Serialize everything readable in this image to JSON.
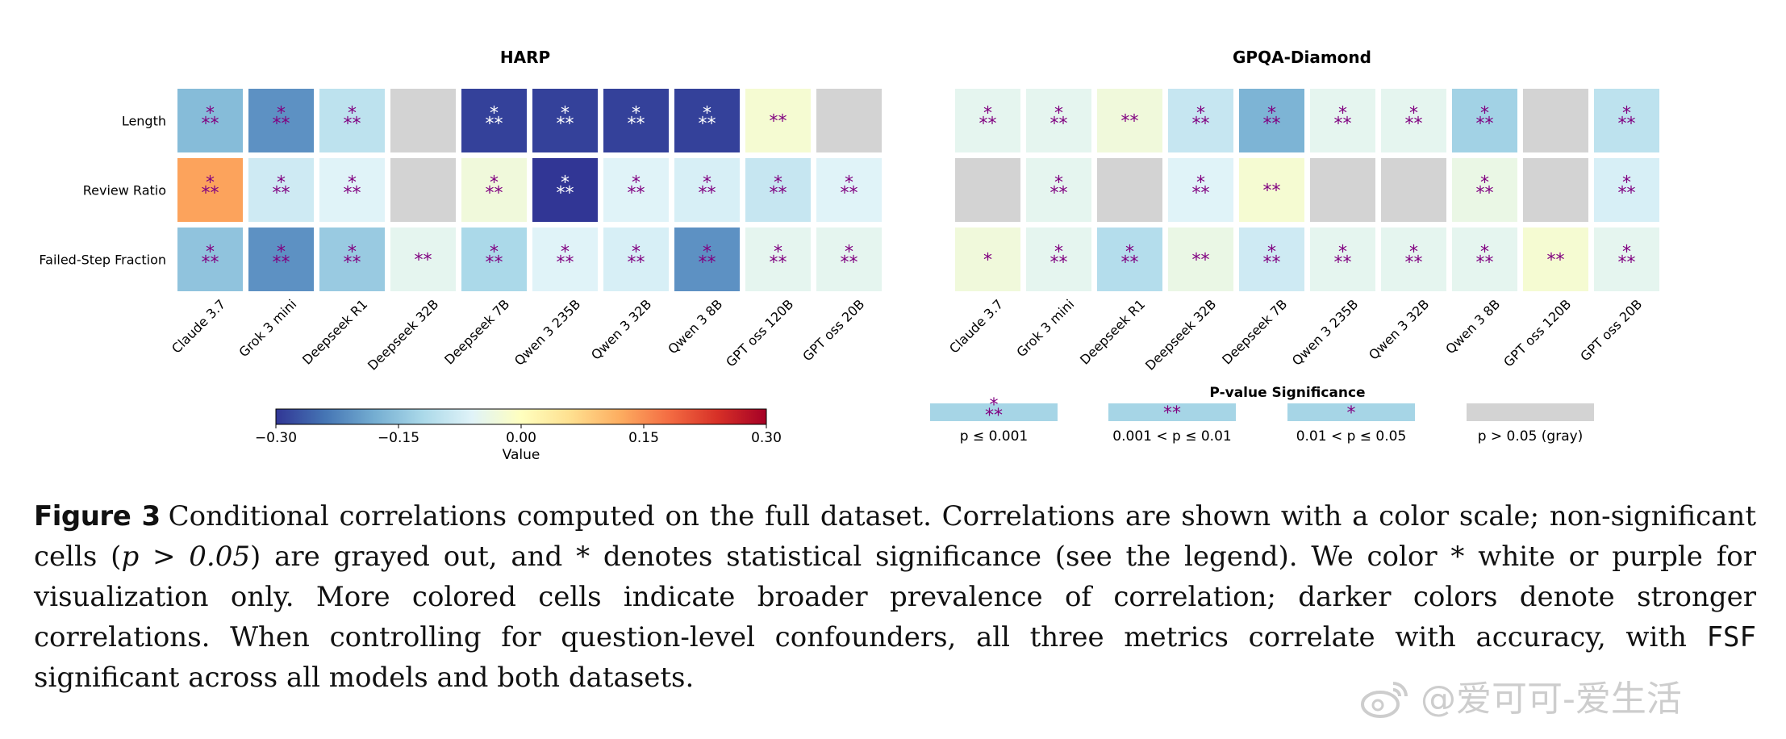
{
  "chart_data": [
    {
      "type": "heatmap",
      "title": "HARP",
      "rows": [
        "Length",
        "Review Ratio",
        "Failed-Step Fraction"
      ],
      "columns": [
        "Claude 3.7",
        "Grok 3 mini",
        "Deepseek R1",
        "Deepseek 32B",
        "Deepseek 7B",
        "Qwen 3 235B",
        "Qwen 3 32B",
        "Qwen 3 8B",
        "GPT oss 120B",
        "GPT oss 20B"
      ],
      "values": [
        [
          -0.16,
          -0.21,
          -0.1,
          null,
          -0.29,
          -0.29,
          -0.29,
          -0.29,
          -0.02,
          null
        ],
        [
          0.13,
          -0.08,
          -0.06,
          null,
          -0.03,
          -0.3,
          -0.06,
          -0.07,
          -0.09,
          -0.06
        ],
        [
          -0.15,
          -0.21,
          -0.14,
          -0.05,
          -0.12,
          -0.06,
          -0.07,
          -0.21,
          -0.05,
          -0.05
        ]
      ],
      "significance": [
        [
          "***",
          "***",
          "***",
          "",
          "***",
          "***",
          "***",
          "***",
          "**",
          ""
        ],
        [
          "***",
          "***",
          "***",
          "",
          "***",
          "***",
          "***",
          "***",
          "***",
          "***"
        ],
        [
          "***",
          "***",
          "***",
          "**",
          "***",
          "***",
          "***",
          "***",
          "***",
          "***"
        ]
      ]
    },
    {
      "type": "heatmap",
      "title": "GPQA-Diamond",
      "rows": [
        "Length",
        "Review Ratio",
        "Failed-Step Fraction"
      ],
      "columns": [
        "Claude 3.7",
        "Grok 3 mini",
        "Deepseek R1",
        "Deepseek 32B",
        "Deepseek 7B",
        "Qwen 3 235B",
        "Qwen 3 32B",
        "Qwen 3 8B",
        "GPT oss 120B",
        "GPT oss 20B"
      ],
      "values": [
        [
          -0.05,
          -0.05,
          -0.03,
          -0.09,
          -0.17,
          -0.05,
          -0.05,
          -0.13,
          null,
          -0.1
        ],
        [
          null,
          -0.05,
          null,
          -0.06,
          -0.02,
          null,
          null,
          -0.04,
          null,
          -0.07
        ],
        [
          -0.03,
          -0.05,
          -0.11,
          -0.04,
          -0.08,
          -0.05,
          -0.05,
          -0.05,
          -0.02,
          -0.05
        ]
      ],
      "significance": [
        [
          "***",
          "***",
          "**",
          "***",
          "***",
          "***",
          "***",
          "***",
          "",
          "***"
        ],
        [
          "",
          "***",
          "",
          "***",
          "**",
          "",
          "",
          "***",
          "",
          "***"
        ],
        [
          "*",
          "***",
          "***",
          "**",
          "***",
          "***",
          "***",
          "***",
          "**",
          "***"
        ]
      ]
    }
  ],
  "colorbar": {
    "label": "Value",
    "range": [
      -0.3,
      0.3
    ],
    "ticks": [
      "−0.30",
      "−0.15",
      "0.00",
      "0.15",
      "0.30"
    ],
    "colormap": "RdYlBu_r"
  },
  "legend": {
    "title": "P-value Significance",
    "items": [
      {
        "marker": "***",
        "label": "p ≤ 0.001",
        "color": "#a6d5e6"
      },
      {
        "marker": "**",
        "label": "0.001 < p ≤ 0.01",
        "color": "#a6d5e6"
      },
      {
        "marker": "*",
        "label": "0.01 < p ≤ 0.05",
        "color": "#a6d5e6"
      },
      {
        "marker": "",
        "label": "p > 0.05 (gray)",
        "color": "#d3d3d3"
      }
    ]
  },
  "caption": {
    "label": "Figure 3",
    "text_part1": "Conditional correlations computed on the full dataset. Correlations are shown with a color scale; non-significant cells (",
    "math1": "p > 0.05",
    "text_part2": ") are grayed out, and * denotes statistical significance (see the legend). We color * white or purple for visualization only. More colored cells indicate broader prevalence of correlation; darker colors denote stronger correlations. When controlling for question-level confounders, all three metrics correlate with accuracy, with ",
    "mono": "FSF",
    "text_part3": " significant across all models and both datasets."
  },
  "watermark": {
    "text": "@爱可可-爱生活"
  },
  "colors": {
    "nonsig_gray": "#d3d3d3",
    "star_purple": "#800080",
    "star_white": "#ffffff"
  }
}
